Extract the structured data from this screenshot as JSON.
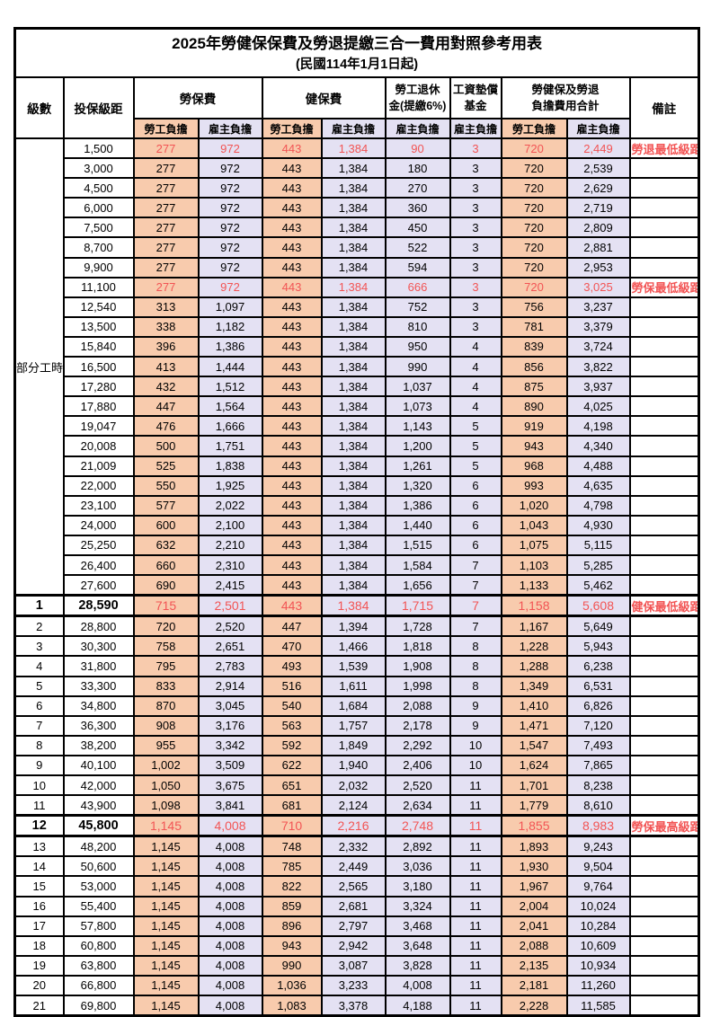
{
  "title": "2025年勞健保保費及勞退提繳三合一費用對照參考用表",
  "subtitle": "(民國114年1月1日起)",
  "colors": {
    "employee_bg": "#F8CBAD",
    "employer_bg": "#E4E1F3",
    "highlight_text": "#F25454",
    "border": "#000000",
    "page_bg": "#FFFFFF"
  },
  "header": {
    "level": "級數",
    "bracket": "投保級距",
    "labor_group": "勞保費",
    "health_group": "健保費",
    "pension_line1": "勞工退休",
    "pension_line2": "金(提繳6%)",
    "wage_fund_line1": "工資墊償",
    "wage_fund_line2": "基金",
    "total_line1": "勞健保及勞退",
    "total_line2": "負擔費用合計",
    "remark": "備註",
    "employee": "勞工負擔",
    "employer": "雇主負擔"
  },
  "part_time_label": "部分工時",
  "part_time_row_count": 23,
  "rows": [
    {
      "lv": "",
      "br": "1,500",
      "vals": [
        "277",
        "972",
        "443",
        "1,384",
        "90",
        "3",
        "720",
        "2,449"
      ],
      "note": "勞退最低級距",
      "red": true,
      "hl": false
    },
    {
      "lv": "",
      "br": "3,000",
      "vals": [
        "277",
        "972",
        "443",
        "1,384",
        "180",
        "3",
        "720",
        "2,539"
      ],
      "note": "",
      "red": false,
      "hl": false
    },
    {
      "lv": "",
      "br": "4,500",
      "vals": [
        "277",
        "972",
        "443",
        "1,384",
        "270",
        "3",
        "720",
        "2,629"
      ],
      "note": "",
      "red": false,
      "hl": false
    },
    {
      "lv": "",
      "br": "6,000",
      "vals": [
        "277",
        "972",
        "443",
        "1,384",
        "360",
        "3",
        "720",
        "2,719"
      ],
      "note": "",
      "red": false,
      "hl": false
    },
    {
      "lv": "",
      "br": "7,500",
      "vals": [
        "277",
        "972",
        "443",
        "1,384",
        "450",
        "3",
        "720",
        "2,809"
      ],
      "note": "",
      "red": false,
      "hl": false
    },
    {
      "lv": "",
      "br": "8,700",
      "vals": [
        "277",
        "972",
        "443",
        "1,384",
        "522",
        "3",
        "720",
        "2,881"
      ],
      "note": "",
      "red": false,
      "hl": false
    },
    {
      "lv": "",
      "br": "9,900",
      "vals": [
        "277",
        "972",
        "443",
        "1,384",
        "594",
        "3",
        "720",
        "2,953"
      ],
      "note": "",
      "red": false,
      "hl": false
    },
    {
      "lv": "",
      "br": "11,100",
      "vals": [
        "277",
        "972",
        "443",
        "1,384",
        "666",
        "3",
        "720",
        "3,025"
      ],
      "note": "勞保最低級距",
      "red": true,
      "hl": false
    },
    {
      "lv": "",
      "br": "12,540",
      "vals": [
        "313",
        "1,097",
        "443",
        "1,384",
        "752",
        "3",
        "756",
        "3,237"
      ],
      "note": "",
      "red": false,
      "hl": false
    },
    {
      "lv": "",
      "br": "13,500",
      "vals": [
        "338",
        "1,182",
        "443",
        "1,384",
        "810",
        "3",
        "781",
        "3,379"
      ],
      "note": "",
      "red": false,
      "hl": false
    },
    {
      "lv": "",
      "br": "15,840",
      "vals": [
        "396",
        "1,386",
        "443",
        "1,384",
        "950",
        "4",
        "839",
        "3,724"
      ],
      "note": "",
      "red": false,
      "hl": false
    },
    {
      "lv": "",
      "br": "16,500",
      "vals": [
        "413",
        "1,444",
        "443",
        "1,384",
        "990",
        "4",
        "856",
        "3,822"
      ],
      "note": "",
      "red": false,
      "hl": false
    },
    {
      "lv": "",
      "br": "17,280",
      "vals": [
        "432",
        "1,512",
        "443",
        "1,384",
        "1,037",
        "4",
        "875",
        "3,937"
      ],
      "note": "",
      "red": false,
      "hl": false
    },
    {
      "lv": "",
      "br": "17,880",
      "vals": [
        "447",
        "1,564",
        "443",
        "1,384",
        "1,073",
        "4",
        "890",
        "4,025"
      ],
      "note": "",
      "red": false,
      "hl": false
    },
    {
      "lv": "",
      "br": "19,047",
      "vals": [
        "476",
        "1,666",
        "443",
        "1,384",
        "1,143",
        "5",
        "919",
        "4,198"
      ],
      "note": "",
      "red": false,
      "hl": false
    },
    {
      "lv": "",
      "br": "20,008",
      "vals": [
        "500",
        "1,751",
        "443",
        "1,384",
        "1,200",
        "5",
        "943",
        "4,340"
      ],
      "note": "",
      "red": false,
      "hl": false
    },
    {
      "lv": "",
      "br": "21,009",
      "vals": [
        "525",
        "1,838",
        "443",
        "1,384",
        "1,261",
        "5",
        "968",
        "4,488"
      ],
      "note": "",
      "red": false,
      "hl": false
    },
    {
      "lv": "",
      "br": "22,000",
      "vals": [
        "550",
        "1,925",
        "443",
        "1,384",
        "1,320",
        "6",
        "993",
        "4,635"
      ],
      "note": "",
      "red": false,
      "hl": false
    },
    {
      "lv": "",
      "br": "23,100",
      "vals": [
        "577",
        "2,022",
        "443",
        "1,384",
        "1,386",
        "6",
        "1,020",
        "4,798"
      ],
      "note": "",
      "red": false,
      "hl": false
    },
    {
      "lv": "",
      "br": "24,000",
      "vals": [
        "600",
        "2,100",
        "443",
        "1,384",
        "1,440",
        "6",
        "1,043",
        "4,930"
      ],
      "note": "",
      "red": false,
      "hl": false
    },
    {
      "lv": "",
      "br": "25,250",
      "vals": [
        "632",
        "2,210",
        "443",
        "1,384",
        "1,515",
        "6",
        "1,075",
        "5,115"
      ],
      "note": "",
      "red": false,
      "hl": false
    },
    {
      "lv": "",
      "br": "26,400",
      "vals": [
        "660",
        "2,310",
        "443",
        "1,384",
        "1,584",
        "7",
        "1,103",
        "5,285"
      ],
      "note": "",
      "red": false,
      "hl": false
    },
    {
      "lv": "",
      "br": "27,600",
      "vals": [
        "690",
        "2,415",
        "443",
        "1,384",
        "1,656",
        "7",
        "1,133",
        "5,462"
      ],
      "note": "",
      "red": false,
      "hl": false
    },
    {
      "lv": "1",
      "br": "28,590",
      "vals": [
        "715",
        "2,501",
        "443",
        "1,384",
        "1,715",
        "7",
        "1,158",
        "5,608"
      ],
      "note": "健保最低級距",
      "red": true,
      "hl": true
    },
    {
      "lv": "2",
      "br": "28,800",
      "vals": [
        "720",
        "2,520",
        "447",
        "1,394",
        "1,728",
        "7",
        "1,167",
        "5,649"
      ],
      "note": "",
      "red": false,
      "hl": false
    },
    {
      "lv": "3",
      "br": "30,300",
      "vals": [
        "758",
        "2,651",
        "470",
        "1,466",
        "1,818",
        "8",
        "1,228",
        "5,943"
      ],
      "note": "",
      "red": false,
      "hl": false
    },
    {
      "lv": "4",
      "br": "31,800",
      "vals": [
        "795",
        "2,783",
        "493",
        "1,539",
        "1,908",
        "8",
        "1,288",
        "6,238"
      ],
      "note": "",
      "red": false,
      "hl": false
    },
    {
      "lv": "5",
      "br": "33,300",
      "vals": [
        "833",
        "2,914",
        "516",
        "1,611",
        "1,998",
        "8",
        "1,349",
        "6,531"
      ],
      "note": "",
      "red": false,
      "hl": false
    },
    {
      "lv": "6",
      "br": "34,800",
      "vals": [
        "870",
        "3,045",
        "540",
        "1,684",
        "2,088",
        "9",
        "1,410",
        "6,826"
      ],
      "note": "",
      "red": false,
      "hl": false
    },
    {
      "lv": "7",
      "br": "36,300",
      "vals": [
        "908",
        "3,176",
        "563",
        "1,757",
        "2,178",
        "9",
        "1,471",
        "7,120"
      ],
      "note": "",
      "red": false,
      "hl": false
    },
    {
      "lv": "8",
      "br": "38,200",
      "vals": [
        "955",
        "3,342",
        "592",
        "1,849",
        "2,292",
        "10",
        "1,547",
        "7,493"
      ],
      "note": "",
      "red": false,
      "hl": false
    },
    {
      "lv": "9",
      "br": "40,100",
      "vals": [
        "1,002",
        "3,509",
        "622",
        "1,940",
        "2,406",
        "10",
        "1,624",
        "7,865"
      ],
      "note": "",
      "red": false,
      "hl": false
    },
    {
      "lv": "10",
      "br": "42,000",
      "vals": [
        "1,050",
        "3,675",
        "651",
        "2,032",
        "2,520",
        "11",
        "1,701",
        "8,238"
      ],
      "note": "",
      "red": false,
      "hl": false
    },
    {
      "lv": "11",
      "br": "43,900",
      "vals": [
        "1,098",
        "3,841",
        "681",
        "2,124",
        "2,634",
        "11",
        "1,779",
        "8,610"
      ],
      "note": "",
      "red": false,
      "hl": false
    },
    {
      "lv": "12",
      "br": "45,800",
      "vals": [
        "1,145",
        "4,008",
        "710",
        "2,216",
        "2,748",
        "11",
        "1,855",
        "8,983"
      ],
      "note": "勞保最高級距",
      "red": true,
      "hl": true
    },
    {
      "lv": "13",
      "br": "48,200",
      "vals": [
        "1,145",
        "4,008",
        "748",
        "2,332",
        "2,892",
        "11",
        "1,893",
        "9,243"
      ],
      "note": "",
      "red": false,
      "hl": false
    },
    {
      "lv": "14",
      "br": "50,600",
      "vals": [
        "1,145",
        "4,008",
        "785",
        "2,449",
        "3,036",
        "11",
        "1,930",
        "9,504"
      ],
      "note": "",
      "red": false,
      "hl": false
    },
    {
      "lv": "15",
      "br": "53,000",
      "vals": [
        "1,145",
        "4,008",
        "822",
        "2,565",
        "3,180",
        "11",
        "1,967",
        "9,764"
      ],
      "note": "",
      "red": false,
      "hl": false
    },
    {
      "lv": "16",
      "br": "55,400",
      "vals": [
        "1,145",
        "4,008",
        "859",
        "2,681",
        "3,324",
        "11",
        "2,004",
        "10,024"
      ],
      "note": "",
      "red": false,
      "hl": false
    },
    {
      "lv": "17",
      "br": "57,800",
      "vals": [
        "1,145",
        "4,008",
        "896",
        "2,797",
        "3,468",
        "11",
        "2,041",
        "10,284"
      ],
      "note": "",
      "red": false,
      "hl": false
    },
    {
      "lv": "18",
      "br": "60,800",
      "vals": [
        "1,145",
        "4,008",
        "943",
        "2,942",
        "3,648",
        "11",
        "2,088",
        "10,609"
      ],
      "note": "",
      "red": false,
      "hl": false
    },
    {
      "lv": "19",
      "br": "63,800",
      "vals": [
        "1,145",
        "4,008",
        "990",
        "3,087",
        "3,828",
        "11",
        "2,135",
        "10,934"
      ],
      "note": "",
      "red": false,
      "hl": false
    },
    {
      "lv": "20",
      "br": "66,800",
      "vals": [
        "1,145",
        "4,008",
        "1,036",
        "3,233",
        "4,008",
        "11",
        "2,181",
        "11,260"
      ],
      "note": "",
      "red": false,
      "hl": false
    },
    {
      "lv": "21",
      "br": "69,800",
      "vals": [
        "1,145",
        "4,008",
        "1,083",
        "3,378",
        "4,188",
        "11",
        "2,228",
        "11,585"
      ],
      "note": "",
      "red": false,
      "hl": false
    }
  ]
}
